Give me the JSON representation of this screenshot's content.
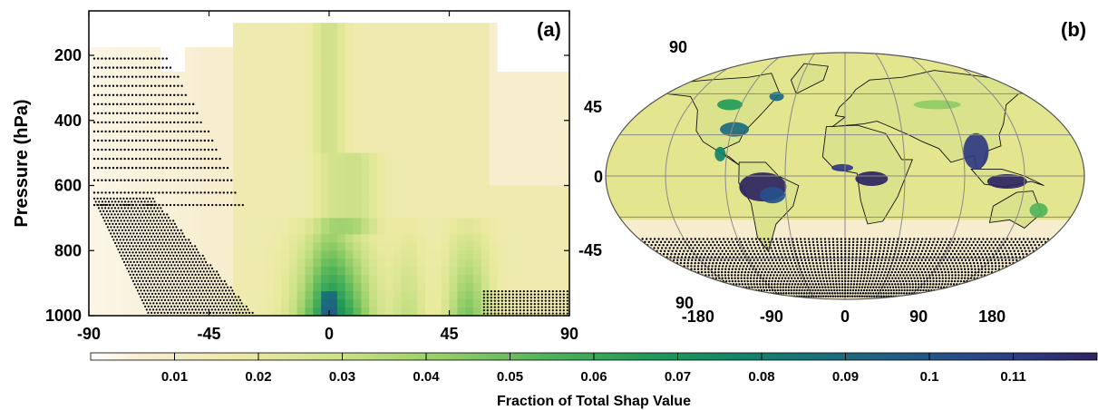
{
  "chart_data": [
    {
      "type": "heatmap",
      "panel_label": "(a)",
      "ylabel": "Pressure (hPa)",
      "xlabel": "",
      "x_ticks": [
        "-90",
        "-45",
        "0",
        "45",
        "90"
      ],
      "y_ticks": [
        "200",
        "400",
        "600",
        "800",
        "1000"
      ],
      "xlim": [
        -90,
        90
      ],
      "ylim": [
        1000,
        100
      ],
      "y_axis": "pressure, reversed (1000 at bottom)",
      "colorscale": "yellow-green-blue-purple",
      "white_regions": [
        {
          "lat": [
            -90,
            -36
          ],
          "p": [
            100,
            175
          ]
        },
        {
          "lat": [
            -63,
            -54
          ],
          "p": [
            175,
            270
          ]
        },
        {
          "lat": [
            63,
            90
          ],
          "p": [
            100,
            260
          ]
        }
      ],
      "max_region": {
        "lat": [
          -2,
          2
        ],
        "p": [
          930,
          1000
        ],
        "value": 0.07
      },
      "stippling": "southern high latitudes and near-surface 58-90 lat"
    },
    {
      "type": "heatmap",
      "panel_label": "(b)",
      "projection": "robinson",
      "x_ticks": [
        "-180",
        "-90",
        "0",
        "90",
        "180"
      ],
      "y_ticks": [
        "90",
        "45",
        "0",
        "-45",
        "90"
      ],
      "hotspots": [
        "Amazon",
        "Central Africa",
        "Southeast Asia",
        "Maritime Continent",
        "Southeastern US"
      ],
      "stippling": "south of 45S"
    }
  ],
  "colorbar": {
    "label": "Fraction of Total Shap Value",
    "ticks": [
      "0.01",
      "0.02",
      "0.03",
      "0.04",
      "0.05",
      "0.06",
      "0.07",
      "0.08",
      "0.09",
      "0.1",
      "0.11"
    ],
    "range": [
      0,
      0.12
    ],
    "colors": [
      "#ffffff",
      "#f7eed1",
      "#eaea9e",
      "#c5df82",
      "#8fcc66",
      "#52b45a",
      "#239b57",
      "#12836a",
      "#1c6a7e",
      "#26508a",
      "#2f3a82",
      "#2c2460"
    ]
  }
}
